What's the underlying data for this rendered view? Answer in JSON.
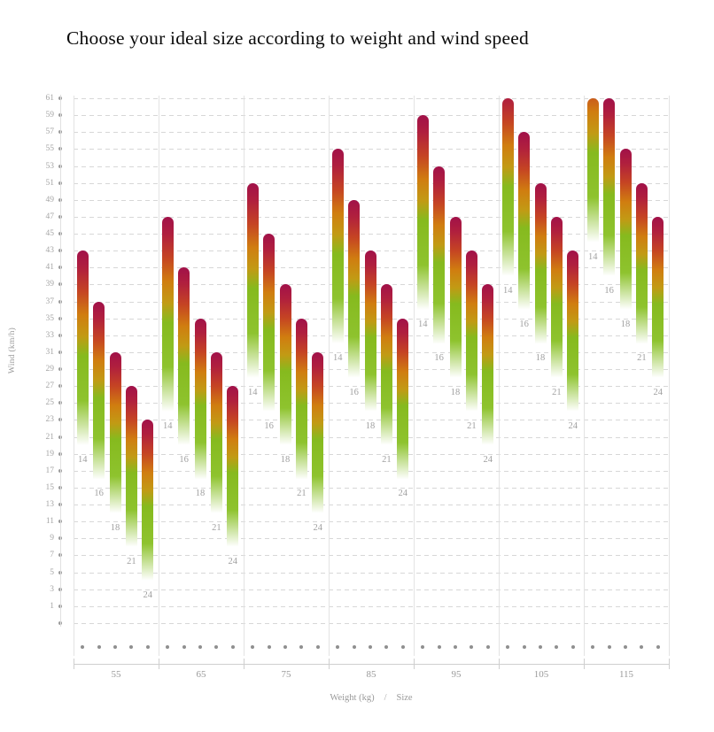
{
  "title": "Choose your ideal size according to weight and wind speed",
  "y_axis": {
    "title": "Wind (km/h)",
    "ticks": [
      61,
      59,
      57,
      55,
      53,
      51,
      49,
      47,
      45,
      43,
      41,
      39,
      37,
      35,
      33,
      31,
      29,
      27,
      25,
      23,
      21,
      19,
      17,
      15,
      13,
      11,
      9,
      7,
      5,
      3,
      1
    ],
    "extra_gridline_value": -1
  },
  "x_axis": {
    "title_weight": "Weight (kg)",
    "title_separator": "/",
    "title_size": "Size",
    "group_labels": [
      "55",
      "65",
      "75",
      "85",
      "95",
      "105",
      "115"
    ]
  },
  "chart_data": {
    "type": "bar",
    "title": "Choose your ideal size according to weight and wind speed",
    "xlabel": "Weight (kg) / Size",
    "ylabel": "Wind (km/h)",
    "ylim": [
      -1,
      61
    ],
    "clip_max": 61,
    "grid": "dashed-horizontal",
    "weights_kg": [
      55,
      65,
      75,
      85,
      95,
      105,
      115
    ],
    "sizes": [
      14,
      16,
      18,
      21,
      24
    ],
    "groups": [
      {
        "weight_kg": 55,
        "bars": [
          {
            "size": 14,
            "wind_min": 20,
            "wind_max": 43
          },
          {
            "size": 16,
            "wind_min": 16,
            "wind_max": 37
          },
          {
            "size": 18,
            "wind_min": 12,
            "wind_max": 31
          },
          {
            "size": 21,
            "wind_min": 8,
            "wind_max": 27
          },
          {
            "size": 24,
            "wind_min": 4,
            "wind_max": 23
          }
        ]
      },
      {
        "weight_kg": 65,
        "bars": [
          {
            "size": 14,
            "wind_min": 24,
            "wind_max": 47
          },
          {
            "size": 16,
            "wind_min": 20,
            "wind_max": 41
          },
          {
            "size": 18,
            "wind_min": 16,
            "wind_max": 35
          },
          {
            "size": 21,
            "wind_min": 12,
            "wind_max": 31
          },
          {
            "size": 24,
            "wind_min": 8,
            "wind_max": 27
          }
        ]
      },
      {
        "weight_kg": 75,
        "bars": [
          {
            "size": 14,
            "wind_min": 28,
            "wind_max": 51
          },
          {
            "size": 16,
            "wind_min": 24,
            "wind_max": 45
          },
          {
            "size": 18,
            "wind_min": 20,
            "wind_max": 39
          },
          {
            "size": 21,
            "wind_min": 16,
            "wind_max": 35
          },
          {
            "size": 24,
            "wind_min": 12,
            "wind_max": 31
          }
        ]
      },
      {
        "weight_kg": 85,
        "bars": [
          {
            "size": 14,
            "wind_min": 32,
            "wind_max": 55
          },
          {
            "size": 16,
            "wind_min": 28,
            "wind_max": 49
          },
          {
            "size": 18,
            "wind_min": 24,
            "wind_max": 43
          },
          {
            "size": 21,
            "wind_min": 20,
            "wind_max": 39
          },
          {
            "size": 24,
            "wind_min": 16,
            "wind_max": 35
          }
        ]
      },
      {
        "weight_kg": 95,
        "bars": [
          {
            "size": 14,
            "wind_min": 36,
            "wind_max": 59
          },
          {
            "size": 16,
            "wind_min": 32,
            "wind_max": 53
          },
          {
            "size": 18,
            "wind_min": 28,
            "wind_max": 47
          },
          {
            "size": 21,
            "wind_min": 24,
            "wind_max": 43
          },
          {
            "size": 24,
            "wind_min": 20,
            "wind_max": 39
          }
        ]
      },
      {
        "weight_kg": 105,
        "bars": [
          {
            "size": 14,
            "wind_min": 40,
            "wind_max": 63
          },
          {
            "size": 16,
            "wind_min": 36,
            "wind_max": 57
          },
          {
            "size": 18,
            "wind_min": 32,
            "wind_max": 51
          },
          {
            "size": 21,
            "wind_min": 28,
            "wind_max": 47
          },
          {
            "size": 24,
            "wind_min": 24,
            "wind_max": 43
          }
        ]
      },
      {
        "weight_kg": 115,
        "bars": [
          {
            "size": 14,
            "wind_min": 44,
            "wind_max": 67
          },
          {
            "size": 16,
            "wind_min": 40,
            "wind_max": 61
          },
          {
            "size": 18,
            "wind_min": 36,
            "wind_max": 55
          },
          {
            "size": 21,
            "wind_min": 32,
            "wind_max": 51
          },
          {
            "size": 24,
            "wind_min": 28,
            "wind_max": 47
          }
        ]
      }
    ],
    "colors": {
      "crimson_top": "#a11149",
      "red": "#c54423",
      "orange": "#d07d10",
      "green": "#86ba1e",
      "fade_bottom": "#ffffff",
      "gradient_stops": [
        [
          0.0,
          "#a11149"
        ],
        [
          0.09,
          "#b01f3e"
        ],
        [
          0.21,
          "#c54423"
        ],
        [
          0.33,
          "#d07d10"
        ],
        [
          0.44,
          "#c29a14"
        ],
        [
          0.54,
          "#86ba1e"
        ],
        [
          0.77,
          "#8ec32e"
        ],
        [
          1.0,
          "#ffffff"
        ]
      ]
    },
    "ui_colors": {
      "grid": "#d7d7d7",
      "separator": "#e3e3e3",
      "axis_text": "#a6a6a6",
      "title_text": "#0a0a0a",
      "dot": "#9b9b9b"
    }
  }
}
